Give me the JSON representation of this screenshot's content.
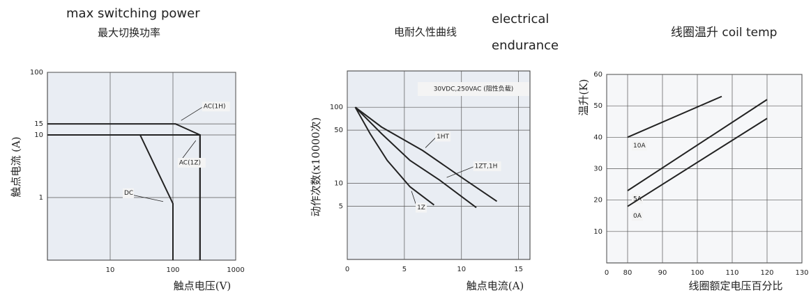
{
  "chart_data": [
    {
      "type": "line",
      "title": "max switching power",
      "subtitle": "最大切换功率",
      "x_label": "触点电压(V)",
      "y_label": "触点电流 (A)",
      "x_scale": "log",
      "y_scale": "log",
      "xlim": [
        1,
        1000
      ],
      "ylim": [
        0.1,
        100
      ],
      "xticks": [
        10,
        100,
        1000
      ],
      "yticks": [
        1,
        10,
        15,
        100
      ],
      "grid": true,
      "series": [
        {
          "name": "AC(1H)",
          "color": "#222222",
          "x": [
            1,
            110,
            270,
            270
          ],
          "values": [
            15,
            15,
            10,
            0.1
          ]
        },
        {
          "name": "AC(1Z)",
          "color": "#222222",
          "x": [
            1,
            270,
            270
          ],
          "values": [
            10,
            10,
            0.1
          ]
        },
        {
          "name": "DC",
          "color": "#222222",
          "x": [
            1,
            30,
            100,
            100
          ],
          "values": [
            10,
            10,
            0.8,
            0.1
          ]
        }
      ]
    },
    {
      "type": "line",
      "title": "电耐久性曲线",
      "title_en": [
        "electrical",
        "endurance"
      ],
      "x_label": "触点电流(A)",
      "y_label": "动作次数(x10000次)",
      "annotation": "30VDC,250VAC (阻性负载)",
      "x_scale": "linear",
      "y_scale": "log",
      "xlim": [
        0,
        16
      ],
      "ylim": [
        1,
        300
      ],
      "xticks": [
        0,
        5,
        10,
        15
      ],
      "yticks": [
        5,
        10,
        50,
        100
      ],
      "grid": true,
      "series": [
        {
          "name": "1HT",
          "color": "#222222",
          "x": [
            0.7,
            3,
            6.6,
            10,
            13.1
          ],
          "values": [
            100,
            55,
            27,
            12,
            5.8
          ]
        },
        {
          "name": "1ZT,1H",
          "color": "#222222",
          "x": [
            0.7,
            3,
            5.5,
            8.1,
            11.3
          ],
          "values": [
            100,
            45,
            20,
            11,
            4.8
          ]
        },
        {
          "name": "1Z",
          "color": "#222222",
          "x": [
            0.7,
            2,
            3.5,
            5.5,
            7.6
          ],
          "values": [
            100,
            45,
            20,
            9,
            5.2
          ]
        }
      ]
    },
    {
      "type": "line",
      "title": "线圈温升 coil temp",
      "x_label": "线圈额定电压百分比",
      "y_label": "温升(K)",
      "axis_break": true,
      "x_scale": "linear",
      "y_scale": "linear",
      "xlim": [
        0,
        130
      ],
      "ylim": [
        0,
        60
      ],
      "xticks": [
        0,
        80,
        90,
        100,
        110,
        120,
        130
      ],
      "yticks": [
        10,
        20,
        30,
        40,
        50,
        60
      ],
      "grid": true,
      "series": [
        {
          "name": "10A",
          "color": "#222222",
          "x": [
            80,
            107
          ],
          "values": [
            40,
            53
          ]
        },
        {
          "name": "5A",
          "color": "#222222",
          "x": [
            80,
            120
          ],
          "values": [
            23,
            52
          ]
        },
        {
          "name": "0A",
          "color": "#222222",
          "x": [
            80,
            120
          ],
          "values": [
            18,
            46
          ]
        }
      ]
    }
  ]
}
